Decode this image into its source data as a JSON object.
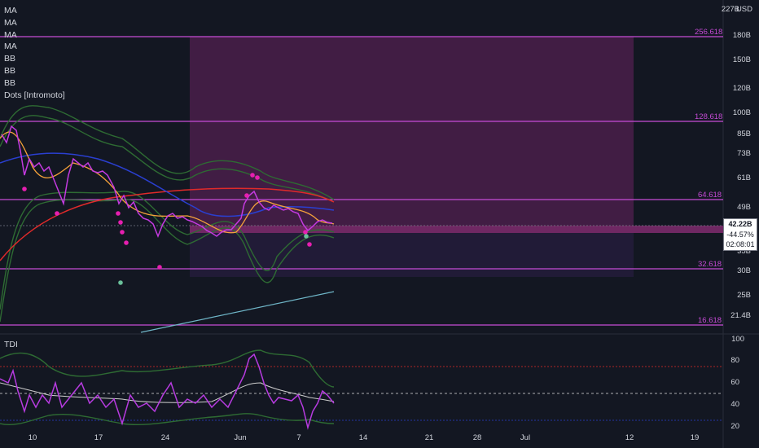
{
  "legend": [
    "MA",
    "MA",
    "MA",
    "MA",
    "BB",
    "BB",
    "BB",
    "Dots [Intromoto]"
  ],
  "tdi_label": "TDI",
  "currency": "USD",
  "price_axis": [
    "227B",
    "180B",
    "150B",
    "120B",
    "100B",
    "85B",
    "73B",
    "61B",
    "49B",
    "35B",
    "30B",
    "25B",
    "21.4B"
  ],
  "fib_levels": [
    "256.618",
    "128.618",
    "64.618",
    "32.618",
    "16.618"
  ],
  "current_price": {
    "value": "42.22B",
    "change": "-44.57%",
    "countdown": "02:08:01"
  },
  "tdi_axis": [
    "100",
    "80",
    "60",
    "40",
    "20"
  ],
  "time_axis": [
    "10",
    "17",
    "24",
    "Jun",
    "7",
    "14",
    "21",
    "28",
    "Jul",
    "12",
    "19"
  ],
  "colors": {
    "background": "#131722",
    "fib_line": "#c64bd6",
    "zone_fill": "#5a2558",
    "candle": "#c43ae0",
    "ma_red": "#e02a2a",
    "ma_blue": "#2a3fd0",
    "ma_orange": "#f5a23a",
    "bb_green": "#2e6b33",
    "dots": "#e61fb0",
    "tdi_price": "#b73be0",
    "tdi_signal": "#cfcfcf"
  }
}
